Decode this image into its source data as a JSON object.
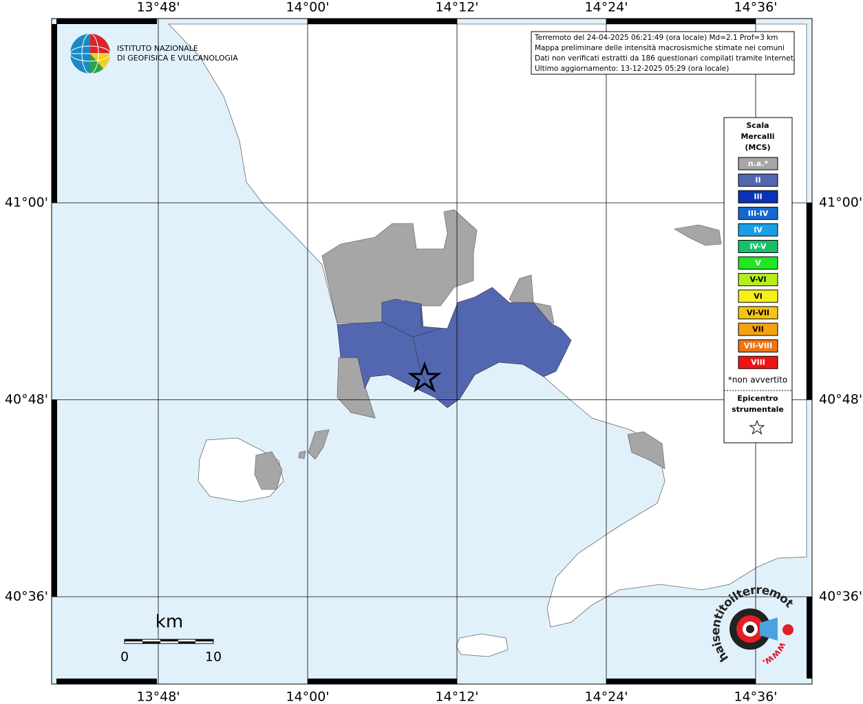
{
  "logo": {
    "lines": [
      "ISTITUTO NAZIONALE",
      "DI GEOFISICA E VULCANOLOGIA"
    ]
  },
  "info_box": {
    "lines": [
      "Terremoto del 24-04-2025 06:21:49 (ora locale) Md=2.1 Prof=3 km",
      "Mappa preliminare delle intensità macrosismiche stimate nei comuni",
      "Dati non verificati estratti da 186 questionari compilati tramite Internet.",
      "Ultimo aggiornamento: 13-12-2025 05:29 (ora locale)"
    ]
  },
  "axes": {
    "lon_ticks": [
      {
        "value": 13.8,
        "label": "13°48'"
      },
      {
        "value": 14.0,
        "label": "14°00'"
      },
      {
        "value": 14.2,
        "label": "14°12'"
      },
      {
        "value": 14.4,
        "label": "14°24'"
      },
      {
        "value": 14.6,
        "label": "14°36'"
      }
    ],
    "lat_ticks": [
      {
        "value": 41.0,
        "label": "41°00'"
      },
      {
        "value": 40.8,
        "label": "40°48'"
      },
      {
        "value": 40.6,
        "label": "40°36'"
      }
    ]
  },
  "legend": {
    "title": [
      "Scala",
      "Mercalli",
      "(MCS)"
    ],
    "items": [
      {
        "label": "n.a.*",
        "color": "#a6a6a6"
      },
      {
        "label": "II",
        "color": "#5366b0"
      },
      {
        "label": "III",
        "color": "#0b32b4"
      },
      {
        "label": "III-IV",
        "color": "#1668d0"
      },
      {
        "label": "IV",
        "color": "#1a9ee8"
      },
      {
        "label": "IV-V",
        "color": "#16bf6a"
      },
      {
        "label": "V",
        "color": "#22e622"
      },
      {
        "label": "V-VI",
        "color": "#b6ee1c"
      },
      {
        "label": "VI",
        "color": "#f6f01a"
      },
      {
        "label": "VI-VII",
        "color": "#f6c412"
      },
      {
        "label": "VII",
        "color": "#f6a212"
      },
      {
        "label": "VII-VIII",
        "color": "#f07414"
      },
      {
        "label": "VIII",
        "color": "#ee1414"
      }
    ],
    "note": "*non avvertito",
    "epicentre": [
      "Epicentro",
      "strumentale"
    ]
  },
  "scale_bar": {
    "unit": "km",
    "ticks": [
      0,
      10
    ]
  },
  "watermark": {
    "text": "haisentitoilterremoto.it",
    "prefix": "www."
  }
}
